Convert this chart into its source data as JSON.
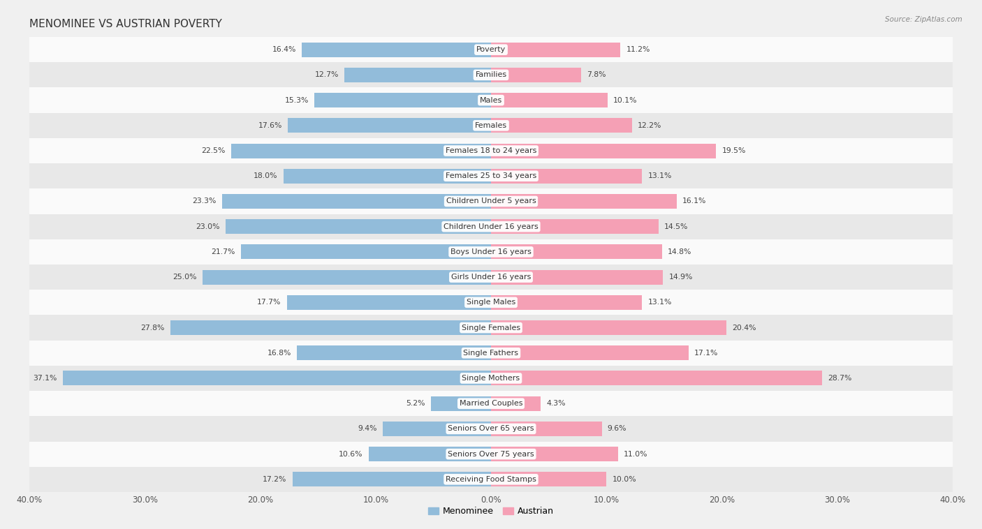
{
  "title": "MENOMINEE VS AUSTRIAN POVERTY",
  "source": "Source: ZipAtlas.com",
  "categories": [
    "Poverty",
    "Families",
    "Males",
    "Females",
    "Females 18 to 24 years",
    "Females 25 to 34 years",
    "Children Under 5 years",
    "Children Under 16 years",
    "Boys Under 16 years",
    "Girls Under 16 years",
    "Single Males",
    "Single Females",
    "Single Fathers",
    "Single Mothers",
    "Married Couples",
    "Seniors Over 65 years",
    "Seniors Over 75 years",
    "Receiving Food Stamps"
  ],
  "menominee": [
    16.4,
    12.7,
    15.3,
    17.6,
    22.5,
    18.0,
    23.3,
    23.0,
    21.7,
    25.0,
    17.7,
    27.8,
    16.8,
    37.1,
    5.2,
    9.4,
    10.6,
    17.2
  ],
  "austrian": [
    11.2,
    7.8,
    10.1,
    12.2,
    19.5,
    13.1,
    16.1,
    14.5,
    14.8,
    14.9,
    13.1,
    20.4,
    17.1,
    28.7,
    4.3,
    9.6,
    11.0,
    10.0
  ],
  "menominee_color": "#92bcda",
  "austrian_color": "#f5a0b5",
  "menominee_label": "Menominee",
  "austrian_label": "Austrian",
  "xlim": 40.0,
  "background_color": "#f0f0f0",
  "row_bg_light": "#fafafa",
  "row_bg_dark": "#e8e8e8",
  "bar_height": 0.58,
  "label_fontsize": 8.0,
  "title_fontsize": 11,
  "value_fontsize": 7.8,
  "tick_fontsize": 8.5
}
